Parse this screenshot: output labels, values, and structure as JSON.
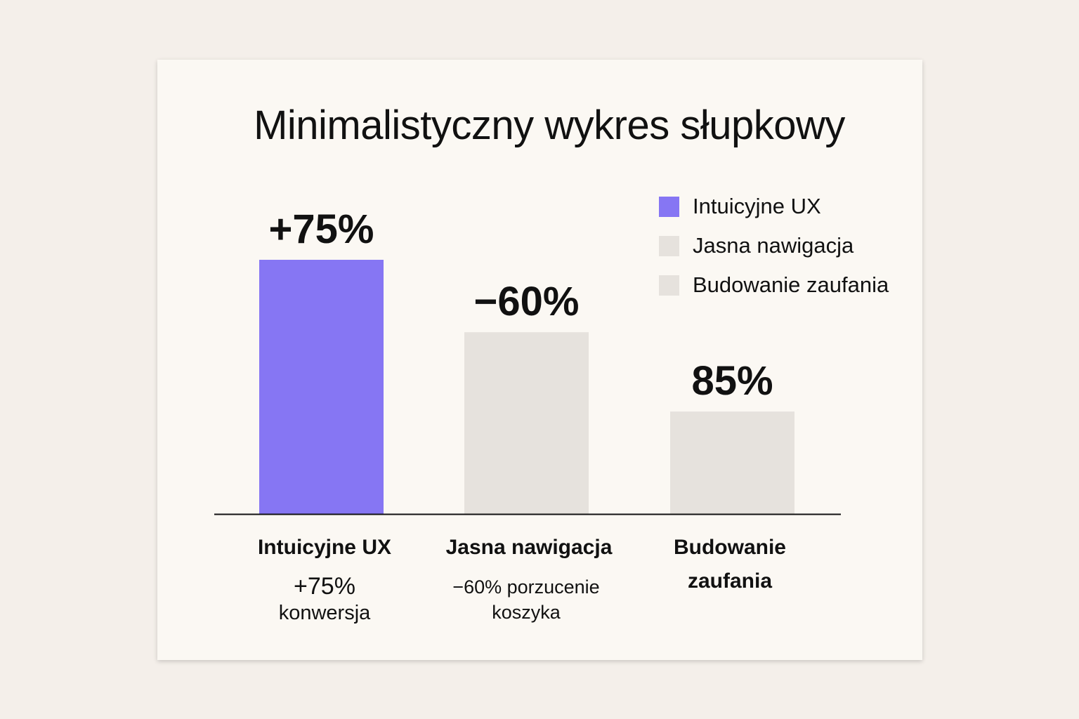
{
  "chart_data": {
    "type": "bar",
    "title": "Minimalistyczny wykres słupkowy",
    "categories": [
      "Intuicyjne UX",
      "Jasna nawigacja",
      "Budowanie zaufania"
    ],
    "values": [
      100,
      71.5,
      40.3
    ],
    "data_labels": [
      "+75%",
      "−60%",
      "85%"
    ],
    "sub_labels": [
      {
        "line1": "+75%",
        "line2": "konwersja"
      },
      {
        "line1": "−60% porzucenie",
        "line2": "koszyka"
      },
      {
        "line1": "",
        "line2": ""
      }
    ],
    "colors": [
      "#8676f3",
      "#e6e2dd",
      "#e6e2dd"
    ],
    "legend": {
      "position": "top-right",
      "entries": [
        {
          "label": "Intuicyjne UX",
          "color": "#8676f3"
        },
        {
          "label": "Jasna nawigacja",
          "color": "#e6e2dd"
        },
        {
          "label": "Budowanie zaufania",
          "color": "#e6e2dd"
        }
      ]
    },
    "ylim": [
      0,
      100
    ],
    "grid": false,
    "y_axis_shown": false,
    "xlabel": "",
    "ylabel": ""
  }
}
